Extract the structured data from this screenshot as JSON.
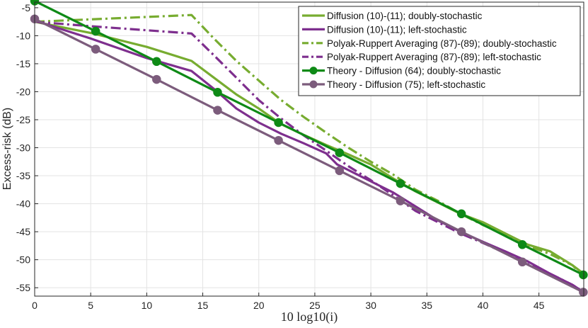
{
  "chart_data": {
    "type": "line",
    "title": "",
    "xlabel": "10 log10(i)",
    "ylabel": "Excess-risk (dB)",
    "xlim": [
      0,
      49
    ],
    "ylim": [
      -56.5,
      -4
    ],
    "grid": true,
    "legend_position": "top-right",
    "x_ticks": [
      0,
      5,
      10,
      15,
      20,
      25,
      30,
      35,
      40,
      45
    ],
    "y_ticks": [
      -5,
      -10,
      -15,
      -20,
      -25,
      -30,
      -35,
      -40,
      -45,
      -50,
      -55
    ],
    "colors": {
      "green": "#77ac30",
      "purple": "#7e2f8e",
      "dark_green": "#0e8a16",
      "mauve": "#7c5c7c"
    },
    "series": [
      {
        "name": "Diffusion (10)-(11); doubly-stochastic",
        "color": "#77ac30",
        "style": "solid",
        "marker": false,
        "points": [
          [
            0,
            -7.5
          ],
          [
            5,
            -9.5
          ],
          [
            10,
            -12
          ],
          [
            14,
            -14.5
          ],
          [
            16,
            -17.5
          ],
          [
            18,
            -20.5
          ],
          [
            20,
            -23
          ],
          [
            22,
            -25.8
          ],
          [
            24,
            -27.7
          ],
          [
            26,
            -29.5
          ],
          [
            28,
            -31.2
          ],
          [
            30,
            -33
          ],
          [
            32,
            -35.5
          ],
          [
            34,
            -37.8
          ],
          [
            36,
            -39.8
          ],
          [
            38,
            -41.8
          ],
          [
            40,
            -43.3
          ],
          [
            42,
            -45.3
          ],
          [
            44,
            -47.3
          ],
          [
            46,
            -48.5
          ],
          [
            48,
            -51
          ],
          [
            49,
            -52.5
          ]
        ]
      },
      {
        "name": "Diffusion (10)-(11); left-stochastic",
        "color": "#7e2f8e",
        "style": "solid",
        "marker": false,
        "points": [
          [
            0,
            -7.3
          ],
          [
            5,
            -10.5
          ],
          [
            10,
            -14
          ],
          [
            14,
            -16.3
          ],
          [
            16,
            -19.5
          ],
          [
            18,
            -23
          ],
          [
            20,
            -25.5
          ],
          [
            22,
            -27.5
          ],
          [
            24,
            -29.2
          ],
          [
            26,
            -31
          ],
          [
            27,
            -33
          ],
          [
            28,
            -34
          ],
          [
            30,
            -36
          ],
          [
            32,
            -38
          ],
          [
            34,
            -40.5
          ],
          [
            36,
            -43
          ],
          [
            38,
            -45
          ],
          [
            40,
            -46.8
          ],
          [
            42,
            -48.5
          ],
          [
            44,
            -50.3
          ],
          [
            46,
            -52.5
          ],
          [
            48,
            -54.5
          ],
          [
            49,
            -55.8
          ]
        ]
      },
      {
        "name": "Polyak-Ruppert Averaging (87)-(89); doubly-stochastic",
        "color": "#77ac30",
        "style": "dashdot",
        "marker": false,
        "points": [
          [
            0,
            -7.5
          ],
          [
            14,
            -6.3
          ],
          [
            16,
            -10.5
          ],
          [
            18,
            -14.5
          ],
          [
            20,
            -18
          ],
          [
            22,
            -21.5
          ],
          [
            24,
            -24.5
          ],
          [
            26,
            -27.3
          ],
          [
            28,
            -30
          ],
          [
            30,
            -32.5
          ],
          [
            32,
            -34.8
          ],
          [
            34,
            -37.5
          ],
          [
            36,
            -39.5
          ],
          [
            38,
            -41.8
          ],
          [
            40,
            -43.8
          ],
          [
            42,
            -45.5
          ],
          [
            44,
            -47.5
          ],
          [
            46,
            -49
          ],
          [
            48,
            -51
          ],
          [
            49,
            -53
          ]
        ]
      },
      {
        "name": "Polyak-Ruppert Averaging (87)-(89); left-stochastic",
        "color": "#7e2f8e",
        "style": "dashdot",
        "marker": false,
        "points": [
          [
            0,
            -7.5
          ],
          [
            5,
            -8.3
          ],
          [
            14,
            -9.6
          ],
          [
            16,
            -13.5
          ],
          [
            18,
            -17.5
          ],
          [
            20,
            -21.5
          ],
          [
            22,
            -24.8
          ],
          [
            24,
            -27.8
          ],
          [
            26,
            -30.5
          ],
          [
            28,
            -33.3
          ],
          [
            30,
            -35.8
          ],
          [
            32,
            -38.5
          ],
          [
            34,
            -41.3
          ],
          [
            36,
            -43.3
          ],
          [
            38,
            -45.3
          ],
          [
            40,
            -47
          ],
          [
            42,
            -48.8
          ],
          [
            44,
            -50.8
          ],
          [
            46,
            -52.5
          ],
          [
            48,
            -54.5
          ],
          [
            49,
            -55.8
          ]
        ]
      },
      {
        "name": "Theory - Diffusion (64); doubly-stochastic",
        "color": "#0e8a16",
        "style": "solid",
        "marker": true,
        "points": [
          [
            0,
            -3.8
          ],
          [
            5.44,
            -9.2
          ],
          [
            10.88,
            -14.6
          ],
          [
            16.32,
            -20.1
          ],
          [
            21.76,
            -25.5
          ],
          [
            27.2,
            -30.9
          ],
          [
            32.64,
            -36.4
          ],
          [
            38.08,
            -41.8
          ],
          [
            43.52,
            -47.3
          ],
          [
            48.96,
            -52.7
          ]
        ]
      },
      {
        "name": "Theory - Diffusion (75); left-stochastic",
        "color": "#7c5c7c",
        "style": "solid",
        "marker": true,
        "points": [
          [
            0,
            -7
          ],
          [
            5.44,
            -12.4
          ],
          [
            10.88,
            -17.8
          ],
          [
            16.32,
            -23.3
          ],
          [
            21.76,
            -28.7
          ],
          [
            27.2,
            -34.1
          ],
          [
            32.64,
            -39.5
          ],
          [
            38.08,
            -45
          ],
          [
            43.52,
            -50.4
          ],
          [
            48.96,
            -55.8
          ]
        ]
      }
    ]
  }
}
